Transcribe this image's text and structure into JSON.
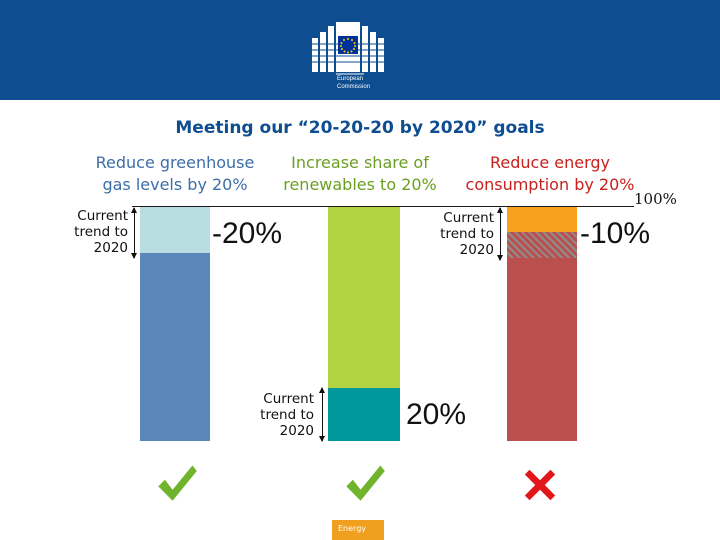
{
  "header": {
    "org_line1": "European",
    "org_line2": "Commission"
  },
  "title": "Meeting our “20-20-20 by 2020” goals",
  "goals": [
    {
      "line1": "Reduce greenhouse",
      "line2": "gas levels by 20%"
    },
    {
      "line1": "Increase share of",
      "line2": "renewables to 20%"
    },
    {
      "line1": "Reduce energy",
      "line2": "consumption by 20%"
    }
  ],
  "baseline_label": "100%",
  "trend_label": {
    "line1": "Current",
    "line2": "trend to",
    "line3": "2020"
  },
  "values": {
    "ghg": "-20%",
    "renewables": "20%",
    "energy": "-10%"
  },
  "status": [
    {
      "icon": "check-icon",
      "met": true
    },
    {
      "icon": "check-icon",
      "met": true
    },
    {
      "icon": "cross-icon",
      "met": false
    }
  ],
  "colors": {
    "header": "#0e4d8f",
    "ghg_bar": "#5b87bb",
    "ghg_trend": "#b7dde1",
    "renewables_bar": "#b2d443",
    "renewables_trend": "#00989a",
    "energy_bar": "#b9504e",
    "energy_trend": "#f7a11f",
    "check": "#6fb42c",
    "cross": "#e2171c"
  },
  "footer_tag": "Energy"
}
